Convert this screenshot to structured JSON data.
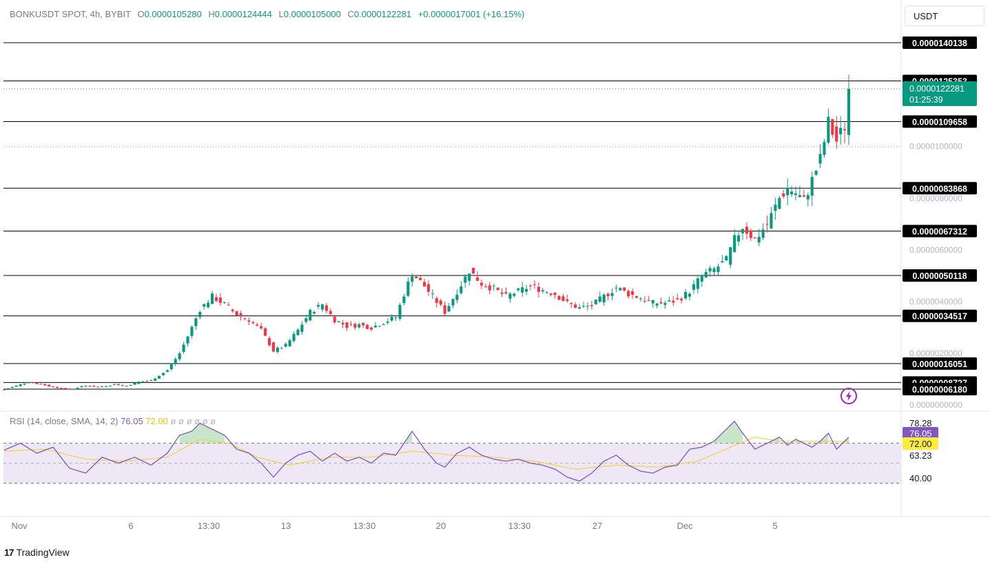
{
  "header": {
    "symbol": "BONKUSDT SPOT, 4h, BYBIT",
    "o_label": "O",
    "o_value": "0.0000105280",
    "h_label": "H",
    "h_value": "0.0000124444",
    "l_label": "L",
    "l_value": "0.0000105000",
    "c_label": "C",
    "c_value": "0.0000122281",
    "change": "+0.0000017001 (+16.15%)"
  },
  "currency_button": "USDT",
  "rsi_header": {
    "title": "RSI (14, close, SMA, 14, 2)",
    "rsi_value": "76.05",
    "sma_value": "72.00",
    "placeholders": "ø ø ø ø ø ø"
  },
  "branding": {
    "logo": "17",
    "name": "TradingView"
  },
  "colors": {
    "up": "#089981",
    "down": "#f23645",
    "rsi_line": "#7e57c2",
    "rsi_sma": "#f5d33c",
    "rsi_band": "#ede7f6",
    "level_line": "#000000",
    "price_tag": "#089981"
  },
  "icons": {
    "flash": "lightning-icon"
  },
  "chart_data": {
    "type": "candlestick",
    "price_axis_ticks": [
      "0.0000100000",
      "0.0000080000",
      "0.0000060000",
      "0.0000040000",
      "0.0000020000",
      "0.0000000000"
    ],
    "x_ticks": [
      "Nov",
      "6",
      "13:30",
      "13",
      "13:30",
      "20",
      "13:30",
      "27",
      "Dec",
      "5"
    ],
    "levels": [
      {
        "label": "0.0000140138",
        "value": 1.40138e-05
      },
      {
        "label": "0.0000125353",
        "value": 1.25353e-05
      },
      {
        "label": "0.0000109658",
        "value": 1.09658e-05
      },
      {
        "label": "0.0000083868",
        "value": 8.3868e-06
      },
      {
        "label": "0.0000067312",
        "value": 6.7312e-06
      },
      {
        "label": "0.0000050118",
        "value": 5.0118e-06
      },
      {
        "label": "0.0000034517",
        "value": 3.4517e-06
      },
      {
        "label": "0.0000016051",
        "value": 1.6051e-06
      },
      {
        "label": "0.0000008727",
        "value": 8.727e-07
      },
      {
        "label": "0.0000006180",
        "value": 6.18e-07
      }
    ],
    "last_price": {
      "label": "0.0000122281",
      "value": 1.22281e-05,
      "countdown": "01:25:39"
    },
    "dotted_level": 1e-05,
    "price_path": [
      [
        0,
        6e-07
      ],
      [
        3,
        7.5e-07
      ],
      [
        6,
        9e-07
      ],
      [
        9,
        8e-07
      ],
      [
        12,
        7e-07
      ],
      [
        16,
        6e-07
      ],
      [
        20,
        7.5e-07
      ],
      [
        23,
        7e-07
      ],
      [
        27,
        8e-07
      ],
      [
        30,
        7.5e-07
      ],
      [
        33,
        9e-07
      ],
      [
        36,
        9.5e-07
      ],
      [
        40,
        1.35e-06
      ],
      [
        43,
        2e-06
      ],
      [
        46,
        3e-06
      ],
      [
        48,
        3.7e-06
      ],
      [
        51,
        4.2e-06
      ],
      [
        54,
        3.9e-06
      ],
      [
        57,
        3.5e-06
      ],
      [
        60,
        3.3e-06
      ],
      [
        63,
        2.9e-06
      ],
      [
        66,
        2.1e-06
      ],
      [
        69,
        2.3e-06
      ],
      [
        72,
        2.9e-06
      ],
      [
        75,
        3.6e-06
      ],
      [
        78,
        3.9e-06
      ],
      [
        81,
        3.3e-06
      ],
      [
        84,
        3.05e-06
      ],
      [
        87,
        3.1e-06
      ],
      [
        90,
        3e-06
      ],
      [
        93,
        3.2e-06
      ],
      [
        96,
        3.4e-06
      ],
      [
        98,
        4.3e-06
      ],
      [
        100,
        5.1e-06
      ],
      [
        103,
        4.6e-06
      ],
      [
        106,
        4e-06
      ],
      [
        108,
        3.6e-06
      ],
      [
        111,
        4.4e-06
      ],
      [
        114,
        5.2e-06
      ],
      [
        117,
        4.7e-06
      ],
      [
        120,
        4.5e-06
      ],
      [
        123,
        4.2e-06
      ],
      [
        126,
        4.4e-06
      ],
      [
        129,
        4.6e-06
      ],
      [
        132,
        4.45e-06
      ],
      [
        135,
        4.3e-06
      ],
      [
        138,
        3.95e-06
      ],
      [
        141,
        3.75e-06
      ],
      [
        144,
        3.85e-06
      ],
      [
        147,
        4.2e-06
      ],
      [
        150,
        4.55e-06
      ],
      [
        153,
        4.3e-06
      ],
      [
        156,
        4.15e-06
      ],
      [
        159,
        3.95e-06
      ],
      [
        162,
        3.95e-06
      ],
      [
        165,
        4.05e-06
      ],
      [
        168,
        4.4e-06
      ],
      [
        171,
        5e-06
      ],
      [
        174,
        5.25e-06
      ],
      [
        177,
        5.6e-06
      ],
      [
        179,
        6.4e-06
      ],
      [
        181,
        6.9e-06
      ],
      [
        184,
        6.4e-06
      ],
      [
        187,
        7e-06
      ],
      [
        190,
        8e-06
      ],
      [
        192,
        8.4e-06
      ],
      [
        194,
        8.2e-06
      ],
      [
        196,
        7.9e-06
      ],
      [
        198,
        8.7e-06
      ],
      [
        200,
        9.5e-06
      ],
      [
        202,
        1.09e-05
      ],
      [
        204,
        1.02e-05
      ],
      [
        206,
        1.08e-05
      ],
      [
        207,
        1.22e-05
      ]
    ],
    "rsi_axis_labels": [
      "78.28",
      "76.05",
      "72.00",
      "63.23",
      "40.00"
    ],
    "rsi_range": [
      0,
      100
    ],
    "rsi_bands": {
      "upper": 70,
      "middle": 50,
      "lower": 30
    },
    "rsi_path": [
      [
        0,
        63
      ],
      [
        4,
        70
      ],
      [
        8,
        60
      ],
      [
        12,
        66
      ],
      [
        16,
        45
      ],
      [
        20,
        40
      ],
      [
        24,
        56
      ],
      [
        28,
        50
      ],
      [
        32,
        56
      ],
      [
        36,
        48
      ],
      [
        40,
        60
      ],
      [
        43,
        78
      ],
      [
        46,
        82
      ],
      [
        48,
        90
      ],
      [
        51,
        84
      ],
      [
        54,
        78
      ],
      [
        57,
        64
      ],
      [
        60,
        60
      ],
      [
        63,
        50
      ],
      [
        66,
        36
      ],
      [
        69,
        50
      ],
      [
        72,
        58
      ],
      [
        75,
        62
      ],
      [
        78,
        52
      ],
      [
        81,
        60
      ],
      [
        84,
        52
      ],
      [
        87,
        56
      ],
      [
        90,
        50
      ],
      [
        93,
        60
      ],
      [
        96,
        58
      ],
      [
        98,
        70
      ],
      [
        100,
        82
      ],
      [
        103,
        64
      ],
      [
        106,
        50
      ],
      [
        108,
        46
      ],
      [
        111,
        60
      ],
      [
        114,
        66
      ],
      [
        117,
        58
      ],
      [
        120,
        54
      ],
      [
        123,
        52
      ],
      [
        126,
        54
      ],
      [
        129,
        50
      ],
      [
        132,
        48
      ],
      [
        135,
        44
      ],
      [
        138,
        36
      ],
      [
        141,
        32
      ],
      [
        144,
        40
      ],
      [
        147,
        52
      ],
      [
        150,
        58
      ],
      [
        153,
        48
      ],
      [
        156,
        42
      ],
      [
        159,
        40
      ],
      [
        162,
        46
      ],
      [
        165,
        48
      ],
      [
        168,
        64
      ],
      [
        171,
        66
      ],
      [
        174,
        72
      ],
      [
        177,
        84
      ],
      [
        179,
        92
      ],
      [
        181,
        80
      ],
      [
        184,
        64
      ],
      [
        187,
        70
      ],
      [
        190,
        76
      ],
      [
        192,
        68
      ],
      [
        194,
        74
      ],
      [
        196,
        70
      ],
      [
        198,
        66
      ],
      [
        200,
        72
      ],
      [
        202,
        80
      ],
      [
        204,
        64
      ],
      [
        206,
        72
      ],
      [
        207,
        76
      ]
    ],
    "rsi_sma_path": [
      [
        0,
        62
      ],
      [
        10,
        64
      ],
      [
        20,
        54
      ],
      [
        30,
        52
      ],
      [
        40,
        56
      ],
      [
        48,
        74
      ],
      [
        55,
        70
      ],
      [
        62,
        56
      ],
      [
        70,
        48
      ],
      [
        80,
        56
      ],
      [
        90,
        56
      ],
      [
        100,
        62
      ],
      [
        110,
        58
      ],
      [
        120,
        56
      ],
      [
        130,
        52
      ],
      [
        140,
        44
      ],
      [
        150,
        48
      ],
      [
        160,
        46
      ],
      [
        170,
        52
      ],
      [
        178,
        66
      ],
      [
        184,
        76
      ],
      [
        190,
        72
      ],
      [
        198,
        72
      ],
      [
        207,
        72
      ]
    ]
  }
}
